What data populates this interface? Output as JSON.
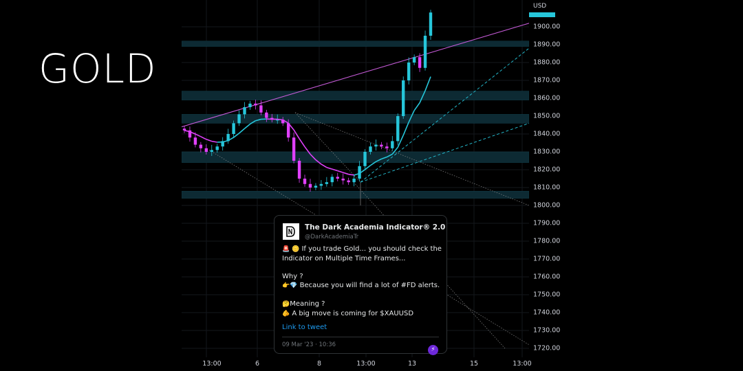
{
  "title": "GOLD",
  "currency": "USD",
  "price_axis": [
    "1900.00",
    "1890.00",
    "1880.00",
    "1870.00",
    "1860.00",
    "1850.00",
    "1840.00",
    "1830.00",
    "1820.00",
    "1810.00",
    "1800.00",
    "1790.00",
    "1780.00",
    "1770.00",
    "1760.00",
    "1750.00",
    "1740.00",
    "1730.00",
    "1720.00"
  ],
  "time_axis": [
    "13:00",
    "6",
    "8",
    "13:00",
    "13",
    "15",
    "13:00"
  ],
  "colors": {
    "bull": "#26c6da",
    "bear": "#e040fb",
    "channel": "#c45ad6",
    "zone": "#0d2a33",
    "dashed": "#26c6da"
  },
  "tweet": {
    "name": "The Dark Academia Indicator® 2.0",
    "handle": "@DarkAcademiaTr",
    "line1_icons": "🚨 🪙",
    "line1": "If you trade Gold... you should check the Indicator on Multiple Time Frames...",
    "why": "Why ?",
    "line2_icons": "👉💎",
    "line2": "Because you will find a lot of #FD alerts.",
    "meaning_icon": "🤔",
    "meaning": "Meaning ?",
    "line3_icon": "🫵",
    "line3": "A big move is coming for $XAUUSD",
    "link": "Link to tweet",
    "date": "09 Mar '23 · 10:36",
    "avatar_icon": "dark-academia-logo-icon",
    "bolt_icon": "lightning-icon"
  },
  "chart_data": {
    "type": "candlestick",
    "symbol": "GOLD",
    "currency": "USD",
    "ylim": [
      1715,
      1910
    ],
    "x_ticks": [
      "13:00",
      "6",
      "8",
      "13:00",
      "13",
      "15",
      "13:00"
    ],
    "y_ticks": [
      1900,
      1890,
      1880,
      1870,
      1860,
      1850,
      1840,
      1830,
      1820,
      1810,
      1800,
      1790,
      1780,
      1770,
      1760,
      1750,
      1740,
      1730,
      1720
    ],
    "close_path": [
      1842,
      1838,
      1834,
      1832,
      1830,
      1831,
      1833,
      1836,
      1840,
      1846,
      1851,
      1855,
      1857,
      1856,
      1852,
      1849,
      1848,
      1848,
      1846,
      1838,
      1825,
      1815,
      1812,
      1810,
      1811,
      1812,
      1813,
      1816,
      1815,
      1814,
      1813,
      1815,
      1822,
      1830,
      1833,
      1834,
      1833,
      1832,
      1836,
      1850,
      1870,
      1880,
      1883,
      1877,
      1895,
      1908
    ],
    "zones": [
      [
        1889,
        1892
      ],
      [
        1859,
        1864
      ],
      [
        1846,
        1851
      ],
      [
        1824,
        1830
      ],
      [
        1804,
        1808
      ]
    ],
    "grid": true
  }
}
